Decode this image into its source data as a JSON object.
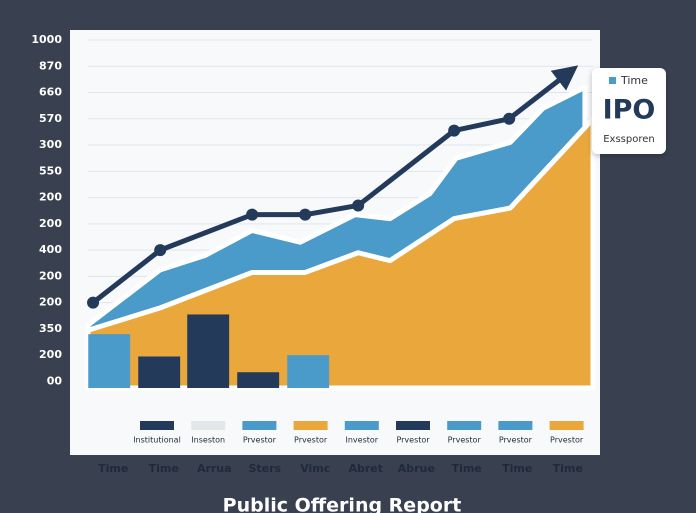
{
  "chart_data": {
    "type": "combo",
    "title": "Public Offering Report",
    "categories": [
      "Time",
      "Time",
      "Arrua",
      "Sters",
      "Vimc",
      "Abret",
      "Abrue",
      "Time",
      "Time",
      "Time"
    ],
    "xlim": [
      0,
      10
    ],
    "ylim": [
      -0.25,
      13
    ],
    "yticks": [
      {
        "value": 0,
        "label": "00"
      },
      {
        "value": 1,
        "label": "200"
      },
      {
        "value": 2,
        "label": "350"
      },
      {
        "value": 3,
        "label": "200"
      },
      {
        "value": 4,
        "label": "200"
      },
      {
        "value": 5,
        "label": "400"
      },
      {
        "value": 6,
        "label": "200"
      },
      {
        "value": 7,
        "label": "200"
      },
      {
        "value": 8,
        "label": "550"
      },
      {
        "value": 9,
        "label": "300"
      },
      {
        "value": 10,
        "label": "570"
      },
      {
        "value": 11,
        "label": "660"
      },
      {
        "value": 12,
        "label": "870"
      },
      {
        "value": 13,
        "label": "1000"
      }
    ],
    "grid": true,
    "series": [
      {
        "type": "area",
        "color": "#4a9bc9",
        "x": [
          0,
          1.43,
          2.32,
          3.25,
          4.2,
          5.29,
          5.98,
          6.77,
          7.29,
          8.36,
          9.01,
          9.84
        ],
        "values": [
          2.15,
          4.25,
          4.8,
          5.75,
          5.3,
          6.35,
          6.2,
          7.15,
          8.5,
          9.1,
          10.4,
          11.2
        ]
      },
      {
        "type": "area",
        "color": "#eaa83c",
        "x": [
          0,
          1.43,
          3.25,
          4.3,
          5.35,
          5.98,
          7.25,
          8.36,
          10.0
        ],
        "values": [
          1.95,
          2.8,
          4.15,
          4.15,
          4.9,
          4.6,
          6.2,
          6.6,
          10.0
        ]
      },
      {
        "type": "bar",
        "colors": [
          "#4a9bc9",
          "#233a5a",
          "#233a5a",
          "#233a5a",
          "#4a9bc9"
        ],
        "x": [
          0.42,
          1.41,
          2.38,
          3.37,
          4.36
        ],
        "values": [
          1.8,
          0.95,
          2.55,
          0.35,
          1.0
        ]
      },
      {
        "type": "line",
        "color": "#233a5a",
        "arrow": true,
        "x": [
          0.1,
          1.43,
          3.25,
          4.3,
          5.35,
          7.25,
          8.34,
          9.55
        ],
        "values": [
          3.0,
          5.0,
          6.35,
          6.35,
          6.7,
          9.55,
          10.0,
          11.8
        ]
      }
    ],
    "legend": [
      {
        "name": "Institutional",
        "color": "#233a5a"
      },
      {
        "name": "Inseston",
        "color": "#e3e6ea"
      },
      {
        "name": "Prvestor",
        "color": "#4a9bc9"
      },
      {
        "name": "Prvestor",
        "color": "#eaa83c"
      },
      {
        "name": "Investor",
        "color": "#4a9bc9"
      },
      {
        "name": "Prvestor",
        "color": "#233a5a"
      },
      {
        "name": "Prvestor",
        "color": "#4a9bc9"
      },
      {
        "name": "Prvestor",
        "color": "#4a9bc9"
      },
      {
        "name": "Prvestor",
        "color": "#eaa83c"
      }
    ],
    "card": {
      "legend": "Time",
      "heading": "IPO",
      "caption": "Exssporen"
    }
  }
}
